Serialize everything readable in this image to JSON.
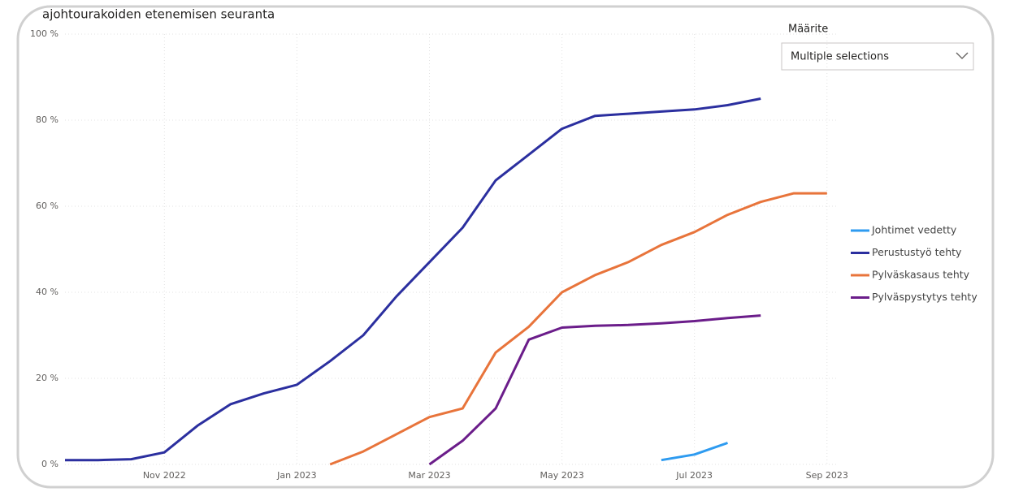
{
  "chart_data": {
    "type": "line",
    "title": "ajohtourakoiden etenemisen seuranta",
    "x": [
      0.5,
      1.0,
      1.5,
      2.0,
      2.5,
      3.0,
      3.5,
      4.0,
      4.5,
      5.0,
      5.5,
      6.0,
      6.5,
      7.0,
      7.5,
      8.0,
      8.5,
      9.0,
      9.5,
      10.0,
      10.5,
      11.0,
      11.5,
      12.0
    ],
    "xlim": [
      0.5,
      12.15
    ],
    "xticks": [
      {
        "value": 2,
        "label": "Nov 2022"
      },
      {
        "value": 4,
        "label": "Jan 2023"
      },
      {
        "value": 6,
        "label": "Mar 2023"
      },
      {
        "value": 8,
        "label": "May 2023"
      },
      {
        "value": 10,
        "label": "Jul 2023"
      },
      {
        "value": 12,
        "label": "Sep 2023"
      }
    ],
    "ylim": [
      0,
      100
    ],
    "yticks": [
      {
        "value": 0,
        "label": "0 %"
      },
      {
        "value": 20,
        "label": "20 %"
      },
      {
        "value": 40,
        "label": "40 %"
      },
      {
        "value": 60,
        "label": "60 %"
      },
      {
        "value": 80,
        "label": "80 %"
      },
      {
        "value": 100,
        "label": "100 %"
      }
    ],
    "grid": true,
    "legend": "right",
    "series": [
      {
        "name": "Johtimet vedetty",
        "color": "#2e9bf0",
        "values": [
          null,
          null,
          null,
          null,
          null,
          null,
          null,
          null,
          null,
          null,
          null,
          null,
          null,
          null,
          null,
          null,
          null,
          null,
          1,
          2.3,
          5,
          null,
          null,
          null
        ]
      },
      {
        "name": "Perustustyö tehty",
        "color": "#2b2f9f",
        "values": [
          1,
          1,
          1.2,
          2.8,
          9,
          14,
          16.5,
          18.5,
          24,
          30,
          39,
          47,
          55,
          66,
          72,
          78,
          81,
          81.5,
          82,
          82.5,
          83.5,
          85,
          null,
          null
        ]
      },
      {
        "name": "Pylväskasaus tehty",
        "color": "#e8743b",
        "values": [
          null,
          null,
          null,
          null,
          null,
          null,
          null,
          null,
          0,
          3,
          7,
          11,
          13,
          26,
          32,
          40,
          44,
          47,
          51,
          54,
          58,
          61,
          63,
          63
        ]
      },
      {
        "name": "Pylväspystytys tehty",
        "color": "#6b1d8a",
        "values": [
          null,
          null,
          null,
          null,
          null,
          null,
          null,
          null,
          null,
          null,
          null,
          0,
          5.5,
          13,
          29,
          31.8,
          32.2,
          32.4,
          32.8,
          33.3,
          34,
          34.6,
          null,
          null
        ]
      }
    ]
  },
  "slicer": {
    "label": "Määrite",
    "value": "Multiple selections"
  }
}
